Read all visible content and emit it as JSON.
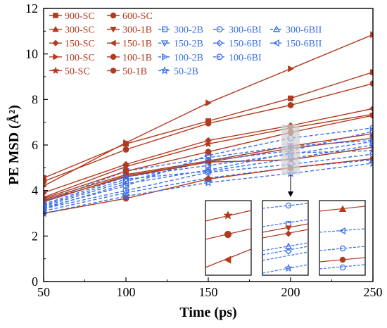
{
  "chart_data": {
    "type": "line",
    "title": "",
    "xlabel": "Time (ps)",
    "ylabel": "PE MSD (Å²)",
    "x": [
      50,
      100,
      150,
      200,
      250
    ],
    "xlim": [
      50,
      250
    ],
    "ylim": [
      0,
      12
    ],
    "xticks": [
      50,
      100,
      150,
      200,
      250
    ],
    "yticks": [
      0,
      2,
      4,
      6,
      8,
      10,
      12
    ],
    "grid": false,
    "legend_position": "top-left",
    "colors": {
      "sc": "#b23a1e",
      "blue": "#3a6ee8",
      "inset_highlight": "#d0d0d0"
    },
    "series": [
      {
        "name": "900-SC",
        "group": "sc",
        "marker": "square",
        "values": [
          4.55,
          6.05,
          7.05,
          8.05,
          9.2
        ]
      },
      {
        "name": "600-SC",
        "group": "sc",
        "marker": "circle",
        "values": [
          4.4,
          5.8,
          6.95,
          7.75,
          8.7
        ]
      },
      {
        "name": "300-SC",
        "group": "sc",
        "marker": "triangle-up",
        "values": [
          3.6,
          4.7,
          5.3,
          5.95,
          6.5
        ]
      },
      {
        "name": "300-1B",
        "group": "sc",
        "marker": "triangle-down",
        "values": [
          3.5,
          4.65,
          5.25,
          5.85,
          6.3
        ]
      },
      {
        "name": "300-2B",
        "group": "blue",
        "marker": "square-open",
        "values": [
          3.3,
          4.4,
          5.3,
          5.75,
          6.6
        ]
      },
      {
        "name": "300-6BI",
        "group": "blue",
        "marker": "circle-open",
        "values": [
          3.25,
          4.2,
          5.55,
          6.3,
          6.75
        ]
      },
      {
        "name": "300-6BII",
        "group": "blue",
        "marker": "triangle-up-open",
        "values": [
          3.1,
          3.9,
          4.55,
          5.0,
          5.35
        ]
      },
      {
        "name": "150-SC",
        "group": "sc",
        "marker": "diamond",
        "values": [
          3.9,
          5.15,
          6.2,
          6.85,
          7.6
        ]
      },
      {
        "name": "150-1B",
        "group": "sc",
        "marker": "triangle-left",
        "values": [
          3.55,
          4.6,
          5.25,
          5.35,
          5.9
        ]
      },
      {
        "name": "150-2B",
        "group": "blue",
        "marker": "triangle-down-open",
        "values": [
          3.5,
          4.85,
          5.45,
          5.95,
          6.2
        ]
      },
      {
        "name": "150-6BI",
        "group": "blue",
        "marker": "diamond-open",
        "values": [
          3.35,
          4.5,
          4.85,
          5.4,
          6.0
        ]
      },
      {
        "name": "150-6BII",
        "group": "blue",
        "marker": "triangle-left-open",
        "values": [
          3.2,
          4.3,
          4.9,
          5.65,
          5.75
        ]
      },
      {
        "name": "100-SC",
        "group": "sc",
        "marker": "triangle-right",
        "values": [
          4.2,
          6.1,
          7.85,
          9.35,
          10.85
        ]
      },
      {
        "name": "100-1B",
        "group": "sc",
        "marker": "circle",
        "values": [
          3.0,
          3.65,
          4.5,
          5.0,
          5.4
        ]
      },
      {
        "name": "100-2B",
        "group": "blue",
        "marker": "triangle-right-open",
        "values": [
          3.4,
          4.6,
          5.1,
          5.6,
          6.15
        ]
      },
      {
        "name": "100-6BI",
        "group": "blue",
        "marker": "circle-open",
        "values": [
          3.2,
          4.0,
          4.8,
          5.15,
          5.6
        ]
      },
      {
        "name": "50-SC",
        "group": "sc",
        "marker": "star",
        "values": [
          3.7,
          5.05,
          6.05,
          6.75,
          7.35
        ]
      },
      {
        "name": "50-1B",
        "group": "sc",
        "marker": "circle",
        "values": [
          3.65,
          4.85,
          5.7,
          6.55,
          7.3
        ]
      },
      {
        "name": "50-2B",
        "group": "blue",
        "marker": "star-open",
        "values": [
          3.0,
          3.75,
          4.35,
          4.75,
          5.2
        ]
      }
    ]
  }
}
